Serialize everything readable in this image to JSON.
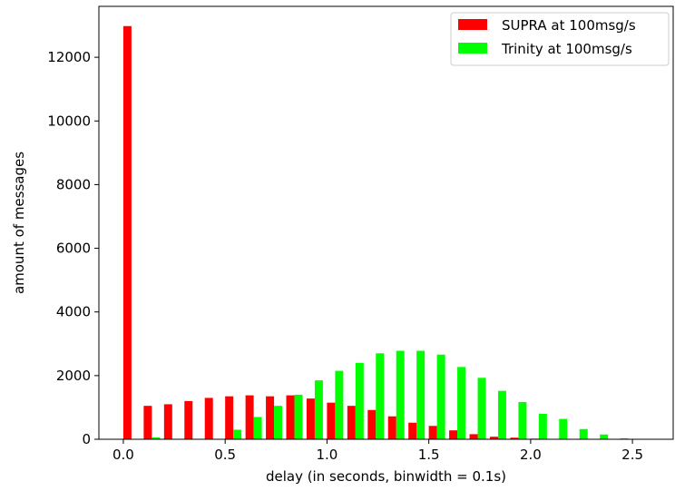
{
  "chart_data": {
    "type": "bar",
    "xlabel": "delay (in seconds, binwidth = 0.1s)",
    "ylabel": "amount of messages",
    "xlim": [
      -0.12,
      2.7
    ],
    "ylim": [
      0,
      13600
    ],
    "xticks": [
      0.0,
      0.5,
      1.0,
      1.5,
      2.0,
      2.5
    ],
    "xtick_labels": [
      "0.0",
      "0.5",
      "1.0",
      "1.5",
      "2.0",
      "2.5"
    ],
    "yticks": [
      0,
      2000,
      4000,
      6000,
      8000,
      10000,
      12000
    ],
    "ytick_labels": [
      "0",
      "2000",
      "4000",
      "6000",
      "8000",
      "10000",
      "12000"
    ],
    "bin_width": 0.1,
    "legend_position": "top-right",
    "grid": false,
    "series": [
      {
        "name": "SUPRA at 100msg/s",
        "color": "#ff0000",
        "x": [
          0.0,
          0.1,
          0.2,
          0.3,
          0.4,
          0.5,
          0.6,
          0.7,
          0.8,
          0.9,
          1.0,
          1.1,
          1.2,
          1.3,
          1.4,
          1.5,
          1.6,
          1.7,
          1.8,
          1.9,
          2.0,
          2.1,
          2.2,
          2.3,
          2.4
        ],
        "values": [
          12980,
          1050,
          1100,
          1200,
          1300,
          1350,
          1380,
          1350,
          1380,
          1280,
          1150,
          1050,
          920,
          720,
          520,
          420,
          280,
          160,
          80,
          50,
          20,
          10,
          5,
          2,
          0
        ]
      },
      {
        "name": "Trinity at 100msg/s",
        "color": "#00ff00",
        "x": [
          0.0,
          0.1,
          0.2,
          0.3,
          0.4,
          0.5,
          0.6,
          0.7,
          0.8,
          0.9,
          1.0,
          1.1,
          1.2,
          1.3,
          1.4,
          1.5,
          1.6,
          1.7,
          1.8,
          1.9,
          2.0,
          2.1,
          2.2,
          2.3,
          2.4
        ],
        "values": [
          0,
          60,
          0,
          5,
          10,
          300,
          700,
          1050,
          1400,
          1850,
          2150,
          2400,
          2700,
          2780,
          2780,
          2660,
          2270,
          1930,
          1520,
          1170,
          800,
          640,
          320,
          150,
          30
        ]
      }
    ]
  }
}
